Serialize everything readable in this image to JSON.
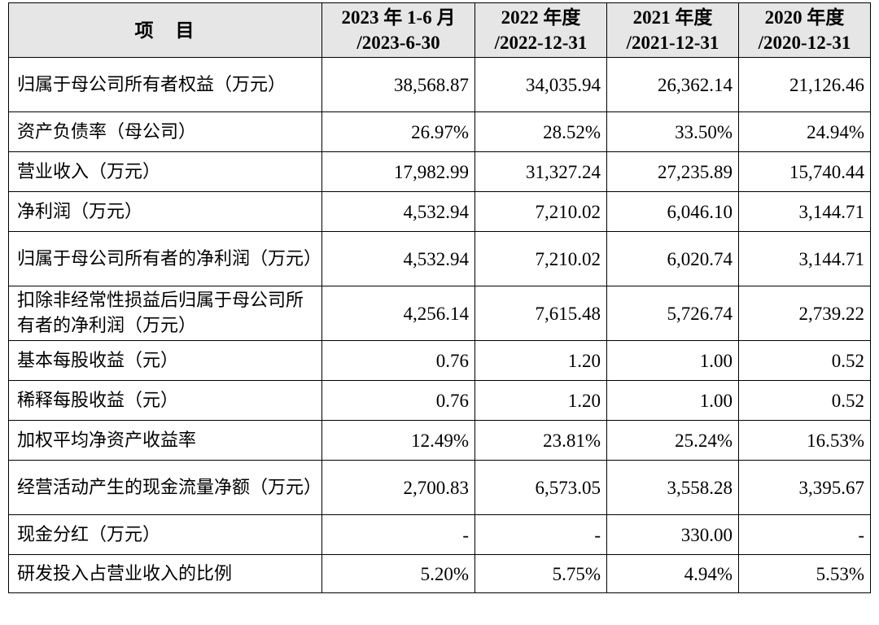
{
  "table": {
    "header": {
      "item": "项　目",
      "cols": [
        {
          "line1": "2023 年 1-6 月",
          "line2": "/2023-6-30"
        },
        {
          "line1": "2022 年度",
          "line2": "/2022-12-31"
        },
        {
          "line1": "2021 年度",
          "line2": "/2021-12-31"
        },
        {
          "line1": "2020 年度",
          "line2": "/2020-12-31"
        }
      ]
    },
    "rows": [
      {
        "label": "归属于母公司所有者权益（万元）",
        "values": [
          "38,568.87",
          "34,035.94",
          "26,362.14",
          "21,126.46"
        ]
      },
      {
        "label": "资产负债率（母公司）",
        "values": [
          "26.97%",
          "28.52%",
          "33.50%",
          "24.94%"
        ]
      },
      {
        "label": "营业收入（万元）",
        "values": [
          "17,982.99",
          "31,327.24",
          "27,235.89",
          "15,740.44"
        ]
      },
      {
        "label": "净利润（万元）",
        "values": [
          "4,532.94",
          "7,210.02",
          "6,046.10",
          "3,144.71"
        ]
      },
      {
        "label": "归属于母公司所有者的净利润（万元）",
        "values": [
          "4,532.94",
          "7,210.02",
          "6,020.74",
          "3,144.71"
        ]
      },
      {
        "label": "扣除非经常性损益后归属于母公司所有者的净利润（万元）",
        "values": [
          "4,256.14",
          "7,615.48",
          "5,726.74",
          "2,739.22"
        ]
      },
      {
        "label": "基本每股收益（元）",
        "values": [
          "0.76",
          "1.20",
          "1.00",
          "0.52"
        ]
      },
      {
        "label": "稀释每股收益（元）",
        "values": [
          "0.76",
          "1.20",
          "1.00",
          "0.52"
        ]
      },
      {
        "label": "加权平均净资产收益率",
        "values": [
          "12.49%",
          "23.81%",
          "25.24%",
          "16.53%"
        ]
      },
      {
        "label": "经营活动产生的现金流量净额（万元）",
        "values": [
          "2,700.83",
          "6,573.05",
          "3,558.28",
          "3,395.67"
        ]
      },
      {
        "label": "现金分红（万元）",
        "values": [
          "-",
          "-",
          "330.00",
          "-"
        ]
      },
      {
        "label": "研发投入占营业收入的比例",
        "values": [
          "5.20%",
          "5.75%",
          "4.94%",
          "5.53%"
        ]
      }
    ]
  }
}
